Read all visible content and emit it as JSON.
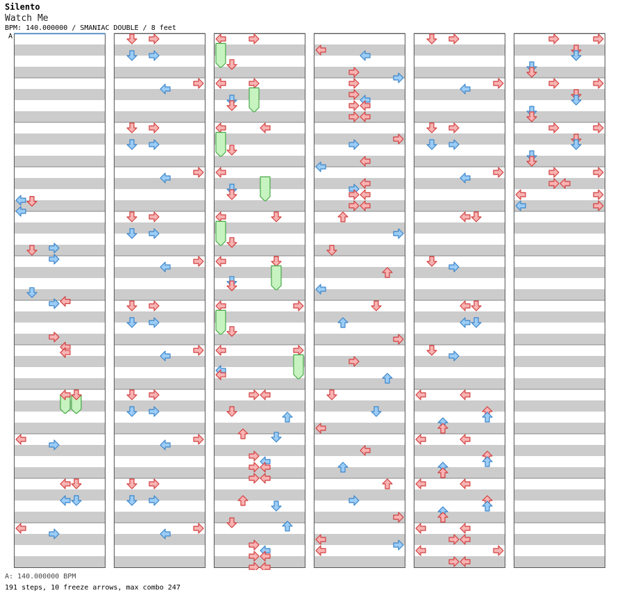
{
  "header": {
    "artist": "Silento",
    "title": "Watch Me",
    "meta": "BPM: 140.000000 / SMANIAC DOUBLE / 8 feet",
    "section_marker": "A"
  },
  "footer": {
    "bpm_line": "A: 140.000000 BPM",
    "stats": "191 steps, 10 freeze arrows, max combo 247"
  },
  "colors": {
    "red_fill": "#f7b3b3",
    "red_stroke": "#d23c3c",
    "blue_fill": "#9ccdf6",
    "blue_stroke": "#3a84c9",
    "freeze_fill": "#c6f3c0",
    "freeze_stroke": "#48a848",
    "stripe": "#cccccc"
  },
  "chart_data": {
    "type": "table",
    "columns": 6,
    "measures_per_column": 12,
    "panels": 8,
    "arrows_sample": [
      {
        "measure": 1,
        "beat": 1,
        "panel": "down",
        "color": "red"
      },
      {
        "measure": 1,
        "beat": 1,
        "panel": "right",
        "color": "red"
      },
      {
        "measure": 13,
        "beat": 1,
        "panel": "left",
        "color": "red"
      },
      {
        "measure": 13,
        "beat": 1,
        "panel": "right",
        "color": "red"
      }
    ]
  }
}
